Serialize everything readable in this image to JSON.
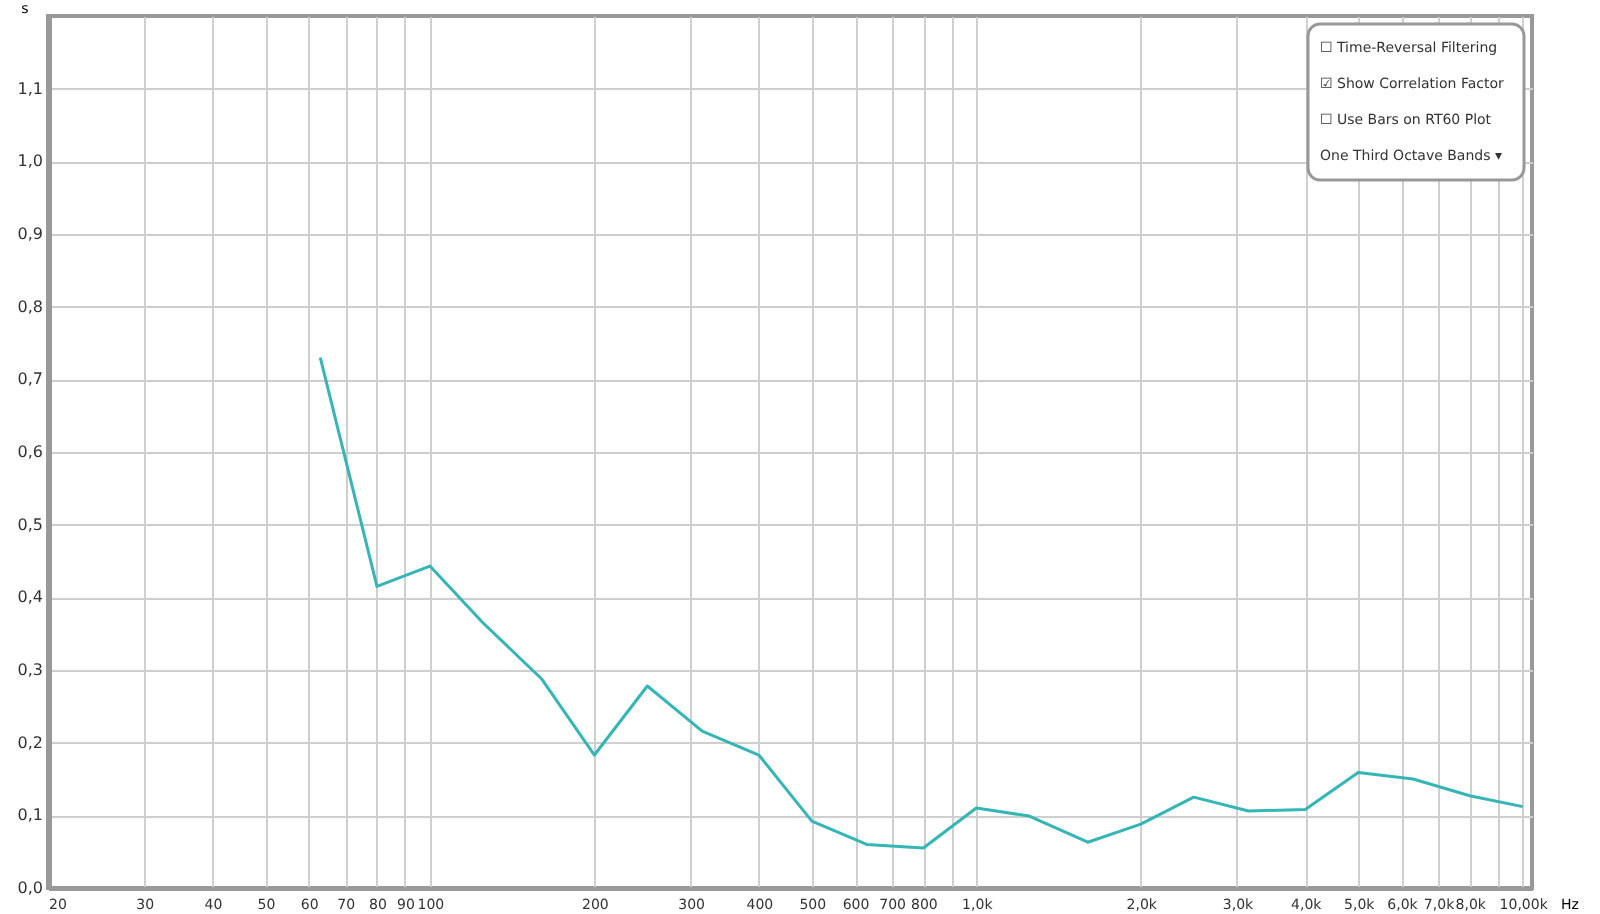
{
  "chart_data": {
    "type": "line",
    "xlabel": "Hz",
    "ylabel": "s",
    "x": [
      63,
      80,
      100,
      125,
      160,
      200,
      250,
      315,
      400,
      500,
      630,
      800,
      1000,
      1250,
      1600,
      2000,
      2500,
      3150,
      4000,
      5000,
      6300,
      8000,
      10000
    ],
    "series": [
      {
        "color": "#35b5b5",
        "values": [
          0.73,
          0.415,
          0.443,
          0.365,
          0.288,
          0.183,
          0.278,
          0.216,
          0.183,
          0.092,
          0.06,
          0.055,
          0.11,
          0.099,
          0.063,
          0.088,
          0.125,
          0.106,
          0.108,
          0.159,
          0.15,
          0.127,
          0.112
        ]
      }
    ],
    "log": "x",
    "xlim": [
      20,
      10400
    ],
    "ylim": [
      0,
      1.2
    ],
    "xticks": [
      20,
      30,
      40,
      50,
      60,
      70,
      80,
      90,
      100,
      200,
      300,
      400,
      500,
      600,
      700,
      800,
      {
        "value": 900,
        "label": null
      },
      {
        "value": 1000,
        "label": "1,0k"
      },
      {
        "value": 2000,
        "label": "2,0k"
      },
      {
        "value": 3000,
        "label": "3,0k"
      },
      {
        "value": 4000,
        "label": "4,0k"
      },
      {
        "value": 5000,
        "label": "5,0k"
      },
      {
        "value": 6000,
        "label": "6,0k"
      },
      {
        "value": 7000,
        "label": "7,0k"
      },
      {
        "value": 8000,
        "label": "8,0k"
      },
      {
        "value": 9000,
        "label": null
      },
      {
        "value": 10000,
        "label": "10,00k"
      }
    ],
    "yticks": [
      {
        "value": 0,
        "label": "0,0"
      },
      {
        "value": 0.1,
        "label": "0,1"
      },
      {
        "value": 0.2,
        "label": "0,2"
      },
      {
        "value": 0.3,
        "label": "0,3"
      },
      {
        "value": 0.4,
        "label": "0,4"
      },
      {
        "value": 0.5,
        "label": "0,5"
      },
      {
        "value": 0.6,
        "label": "0,6"
      },
      {
        "value": 0.7,
        "label": "0,7"
      },
      {
        "value": 0.8,
        "label": "0,8"
      },
      {
        "value": 0.9,
        "label": "0,9"
      },
      {
        "value": 1.0,
        "label": "1,0"
      },
      {
        "value": 1.1,
        "label": "1,1"
      }
    ],
    "grid": true,
    "annotations": [
      "☐ Time-Reversal Filtering",
      "☑ Show Correlation Factor",
      "☐ Use Bars on RT60 Plot",
      "One Third Octave Bands ▾"
    ]
  }
}
